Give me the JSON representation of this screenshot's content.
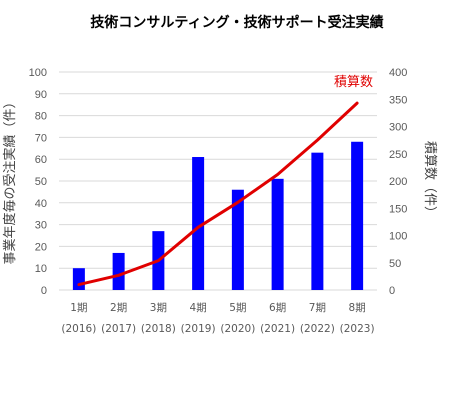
{
  "chart_data": {
    "type": "bar",
    "title": "技術コンサルティング・技術サポート受注実績",
    "ylabel": "事業年度毎の受注実績（件）",
    "y2label": "積算数（件）",
    "categories": [
      {
        "line1": "1期",
        "line2": "(2016)"
      },
      {
        "line1": "2期",
        "line2": "(2017)"
      },
      {
        "line1": "3期",
        "line2": "(2018)"
      },
      {
        "line1": "4期",
        "line2": "(2019)"
      },
      {
        "line1": "5期",
        "line2": "(2020)"
      },
      {
        "line1": "6期",
        "line2": "(2021)"
      },
      {
        "line1": "7期",
        "line2": "(2022)"
      },
      {
        "line1": "8期",
        "line2": "(2023)"
      }
    ],
    "bar_values": [
      10,
      17,
      27,
      61,
      46,
      51,
      63,
      68
    ],
    "bar_color": "#0000ff",
    "line_values": [
      10,
      27,
      54,
      115,
      161,
      212,
      275,
      343
    ],
    "line_color": "#e00000",
    "line_annotation": "積算数",
    "ylim": [
      0,
      100
    ],
    "y_ticks": [
      "0",
      "10",
      "20",
      "30",
      "40",
      "50",
      "60",
      "70",
      "80",
      "90",
      "100"
    ],
    "y2lim": [
      0,
      400
    ],
    "y2_ticks": [
      "0",
      "50",
      "100",
      "150",
      "200",
      "250",
      "300",
      "350",
      "400"
    ],
    "grid": true,
    "legend": "none"
  }
}
